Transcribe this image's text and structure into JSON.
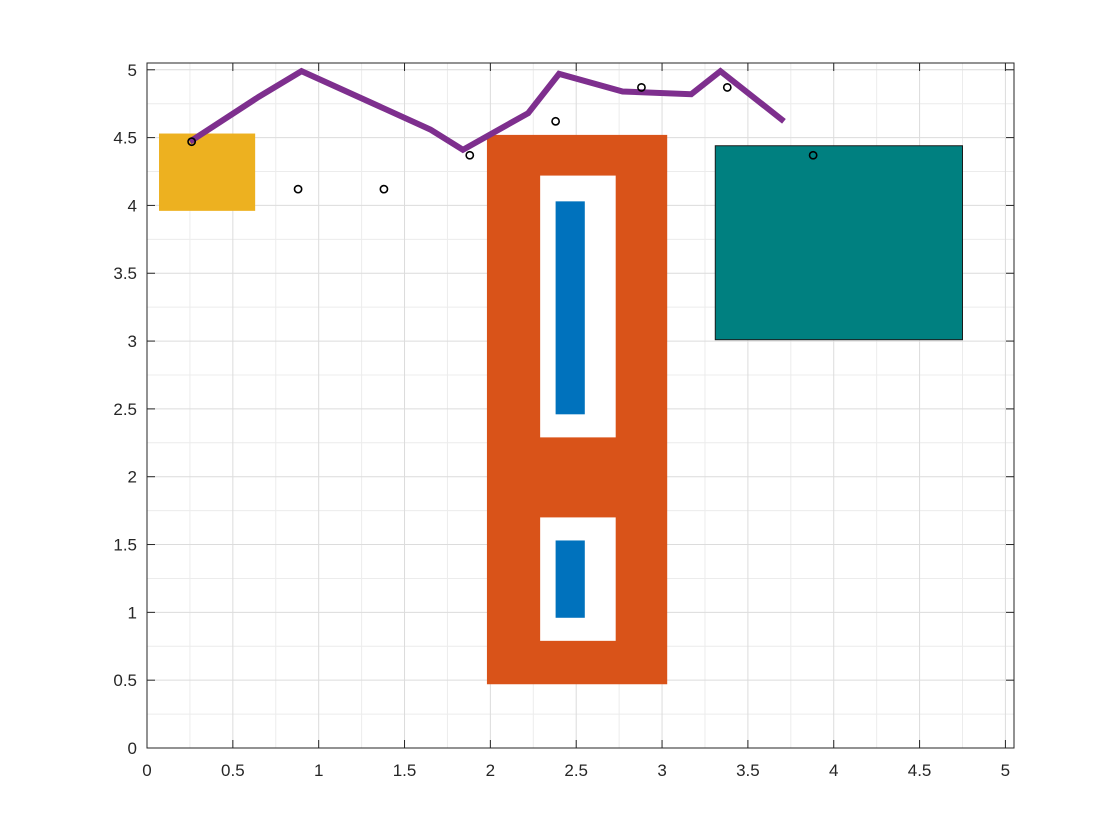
{
  "chart_data": {
    "type": "scatter",
    "title": "",
    "xlabel": "",
    "ylabel": "",
    "xlim": [
      0,
      5.05
    ],
    "ylim": [
      0,
      5.05
    ],
    "x_ticks": [
      0,
      0.5,
      1,
      1.5,
      2,
      2.5,
      3,
      3.5,
      4,
      4.5,
      5
    ],
    "y_ticks": [
      0,
      0.5,
      1,
      1.5,
      2,
      2.5,
      3,
      3.5,
      4,
      4.5,
      5
    ],
    "x_tick_labels": [
      "0",
      "0.5",
      "1",
      "1.5",
      "2",
      "2.5",
      "3",
      "3.5",
      "4",
      "4.5",
      "5"
    ],
    "y_tick_labels": [
      "0",
      "0.5",
      "1",
      "1.5",
      "2",
      "2.5",
      "3",
      "3.5",
      "4",
      "4.5",
      "5"
    ],
    "grid": "on",
    "minor_grid": "on",
    "rectangles": [
      {
        "name": "yellow-block",
        "x": [
          0.07,
          0.63
        ],
        "y": [
          3.96,
          4.53
        ],
        "color": "#EDB120"
      },
      {
        "name": "orange-block",
        "x": [
          1.98,
          3.03
        ],
        "y": [
          0.47,
          4.52
        ],
        "color": "#D95319"
      },
      {
        "name": "white-slot-upper",
        "x": [
          2.29,
          2.73
        ],
        "y": [
          2.29,
          4.22
        ],
        "color": "#FFFFFF"
      },
      {
        "name": "white-slot-lower",
        "x": [
          2.29,
          2.73
        ],
        "y": [
          0.79,
          1.7
        ],
        "color": "#FFFFFF"
      },
      {
        "name": "blue-bar-upper",
        "x": [
          2.38,
          2.55
        ],
        "y": [
          2.46,
          4.03
        ],
        "color": "#0072BD"
      },
      {
        "name": "blue-bar-lower",
        "x": [
          2.38,
          2.55
        ],
        "y": [
          0.96,
          1.53
        ],
        "color": "#0072BD"
      },
      {
        "name": "teal-block",
        "x": [
          3.31,
          4.75
        ],
        "y": [
          3.01,
          4.44
        ],
        "color": "#008080",
        "outline": "#1a1a1a"
      }
    ],
    "series": [
      {
        "type": "line",
        "color": "#7E2F8E",
        "x": [
          0.25,
          0.65,
          0.9,
          1.65,
          1.84,
          2.22,
          2.4,
          2.77,
          3.17,
          3.34,
          3.71
        ],
        "y": [
          4.47,
          4.8,
          4.99,
          4.56,
          4.41,
          4.68,
          4.97,
          4.84,
          4.82,
          4.99,
          4.62
        ]
      },
      {
        "type": "scatter",
        "marker": "circle-open",
        "color": "#000000",
        "x": [
          0.26,
          0.88,
          1.38,
          1.88,
          2.38,
          2.88,
          3.38,
          3.88
        ],
        "y": [
          4.47,
          4.12,
          4.12,
          4.37,
          4.62,
          4.87,
          4.87,
          4.37
        ]
      }
    ]
  }
}
